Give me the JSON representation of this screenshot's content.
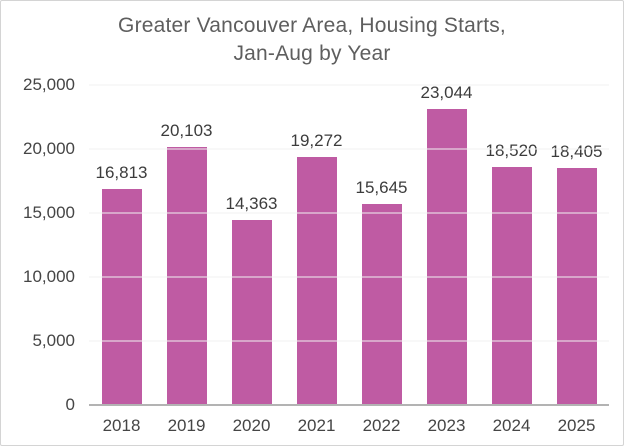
{
  "chart_data": {
    "type": "bar",
    "title": "Greater Vancouver Area, Housing Starts, Jan-Aug by Year",
    "title_lines": [
      "Greater Vancouver Area, Housing Starts,",
      "Jan-Aug by Year"
    ],
    "categories": [
      "2018",
      "2019",
      "2020",
      "2021",
      "2022",
      "2023",
      "2024",
      "2025"
    ],
    "values": [
      16813,
      20103,
      14363,
      19272,
      15645,
      23044,
      18520,
      18405
    ],
    "value_labels": [
      "16,813",
      "20,103",
      "14,363",
      "19,272",
      "15,645",
      "23,044",
      "18,520",
      "18,405"
    ],
    "xlabel": "",
    "ylabel": "",
    "ylim": [
      0,
      25000
    ],
    "yticks": [
      0,
      5000,
      10000,
      15000,
      20000,
      25000
    ],
    "ytick_labels": [
      "0",
      "5,000",
      "10,000",
      "15,000",
      "20,000",
      "25,000"
    ],
    "grid": "horizontal",
    "legend": "none",
    "colors": {
      "bar": "#bf5ba3",
      "title_text": "#5e5e5e",
      "axis_text": "#454545",
      "value_label_text": "#3c3c3c",
      "gridline": "#f1f1f1",
      "axis_line": "#b3b3b3",
      "frame_border": "#d4d4d4",
      "background": "#ffffff"
    }
  }
}
